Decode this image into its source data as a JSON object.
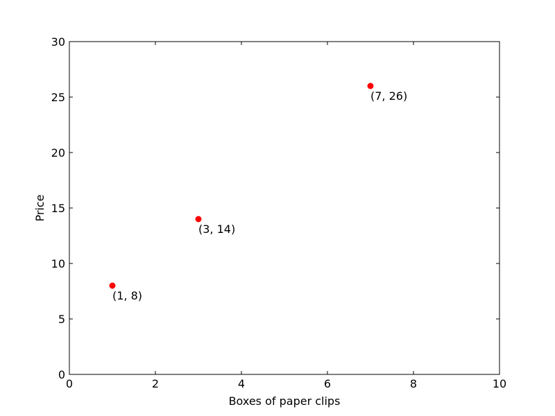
{
  "chart_data": {
    "type": "scatter",
    "title": "",
    "xlabel": "Boxes of paper clips",
    "ylabel": "Price",
    "xlim": [
      0,
      10
    ],
    "ylim": [
      0,
      30
    ],
    "xticks": [
      0,
      2,
      4,
      6,
      8,
      10
    ],
    "yticks": [
      0,
      5,
      10,
      15,
      20,
      25,
      30
    ],
    "grid": false,
    "series": [
      {
        "color": "#ff0000",
        "points": [
          {
            "x": 1,
            "y": 8,
            "label": "(1, 8)"
          },
          {
            "x": 3,
            "y": 14,
            "label": "(3, 14)"
          },
          {
            "x": 7,
            "y": 26,
            "label": "(7, 26)"
          }
        ]
      }
    ]
  }
}
